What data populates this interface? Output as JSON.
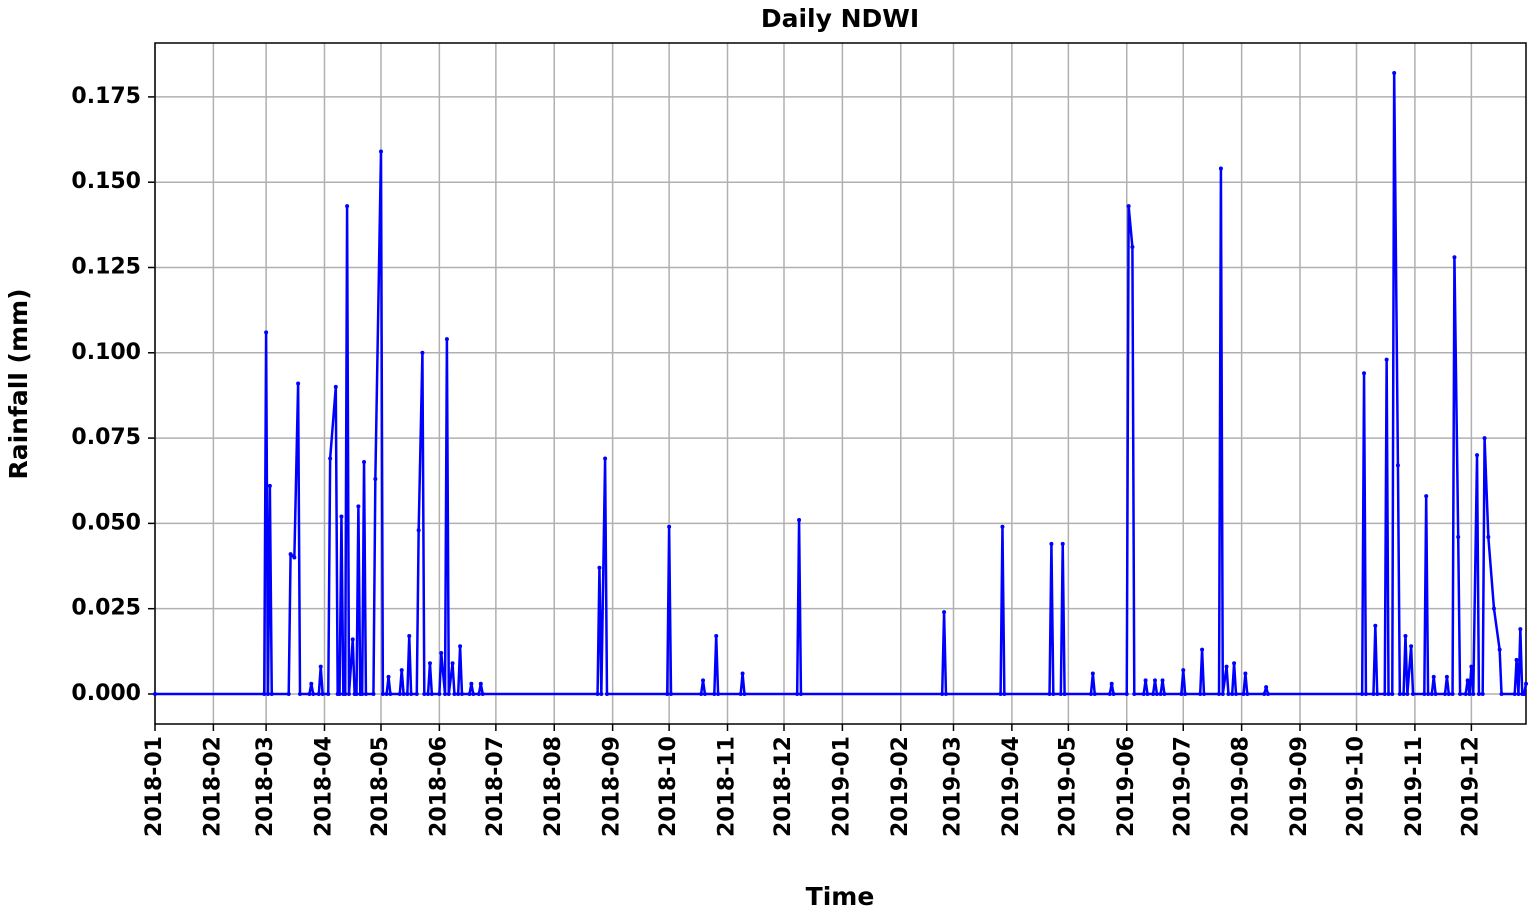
{
  "chart_data": {
    "type": "line",
    "title": "Daily NDWI",
    "xlabel": "Time",
    "ylabel": "Rainfall (mm)",
    "grid": true,
    "color": "#0000ff",
    "xlim": [
      0,
      728
    ],
    "ylim": [
      -0.0088,
      0.1908
    ],
    "xticks": [
      {
        "value": 0,
        "label": "2018-01"
      },
      {
        "value": 31,
        "label": "2018-02"
      },
      {
        "value": 59,
        "label": "2018-03"
      },
      {
        "value": 90,
        "label": "2018-04"
      },
      {
        "value": 120,
        "label": "2018-05"
      },
      {
        "value": 151,
        "label": "2018-06"
      },
      {
        "value": 181,
        "label": "2018-07"
      },
      {
        "value": 212,
        "label": "2018-08"
      },
      {
        "value": 243,
        "label": "2018-09"
      },
      {
        "value": 273,
        "label": "2018-10"
      },
      {
        "value": 304,
        "label": "2018-11"
      },
      {
        "value": 334,
        "label": "2018-12"
      },
      {
        "value": 365,
        "label": "2019-01"
      },
      {
        "value": 396,
        "label": "2019-02"
      },
      {
        "value": 424,
        "label": "2019-03"
      },
      {
        "value": 455,
        "label": "2019-04"
      },
      {
        "value": 485,
        "label": "2019-05"
      },
      {
        "value": 516,
        "label": "2019-06"
      },
      {
        "value": 546,
        "label": "2019-07"
      },
      {
        "value": 577,
        "label": "2019-08"
      },
      {
        "value": 608,
        "label": "2019-09"
      },
      {
        "value": 638,
        "label": "2019-10"
      },
      {
        "value": 669,
        "label": "2019-11"
      },
      {
        "value": 699,
        "label": "2019-12"
      }
    ],
    "yticks": [
      {
        "value": 0,
        "label": "0.000"
      },
      {
        "value": 0.025,
        "label": "0.025"
      },
      {
        "value": 0.05,
        "label": "0.050"
      },
      {
        "value": 0.075,
        "label": "0.075"
      },
      {
        "value": 0.1,
        "label": "0.100"
      },
      {
        "value": 0.125,
        "label": "0.125"
      },
      {
        "value": 0.15,
        "label": "0.150"
      },
      {
        "value": 0.175,
        "label": "0.175"
      }
    ],
    "x": [
      0,
      58,
      59,
      60,
      61,
      62,
      71,
      72,
      74,
      76,
      77,
      82,
      83,
      84,
      87,
      88,
      89,
      92,
      93,
      96,
      97,
      98,
      99,
      100,
      101,
      102,
      103,
      105,
      106,
      107,
      108,
      109,
      110,
      111,
      112,
      116,
      117,
      120,
      121,
      123,
      124,
      125,
      130,
      131,
      132,
      134,
      135,
      136,
      139,
      140,
      142,
      143,
      145,
      146,
      147,
      151,
      152,
      154,
      155,
      156,
      158,
      159,
      161,
      162,
      163,
      167,
      168,
      169,
      172,
      173,
      174,
      235,
      236,
      237,
      239,
      240,
      272,
      273,
      274,
      290,
      291,
      292,
      297,
      298,
      299,
      311,
      312,
      313,
      341,
      342,
      343,
      418,
      419,
      420,
      449,
      450,
      451,
      475,
      476,
      477,
      481,
      482,
      483,
      497,
      498,
      499,
      507,
      508,
      509,
      516,
      517,
      519,
      520,
      525,
      526,
      527,
      530,
      531,
      532,
      534,
      535,
      536,
      545,
      546,
      547,
      555,
      556,
      557,
      565,
      566,
      567,
      569,
      570,
      572,
      573,
      574,
      578,
      579,
      580,
      589,
      590,
      591,
      641,
      642,
      643,
      647,
      648,
      649,
      653,
      654,
      655,
      657,
      658,
      660,
      661,
      663,
      664,
      665,
      667,
      668,
      674,
      675,
      676,
      678,
      679,
      680,
      685,
      686,
      687,
      689,
      690,
      692,
      693,
      696,
      697,
      698,
      699,
      700,
      702,
      703,
      705,
      706,
      708,
      711,
      714,
      715,
      722,
      723,
      724,
      725,
      726,
      727,
      728
    ],
    "values": [
      0,
      0,
      0.106,
      0,
      0.061,
      0,
      0,
      0.041,
      0.04,
      0.091,
      0,
      0,
      0.003,
      0,
      0,
      0.008,
      0,
      0,
      0.069,
      0.09,
      0,
      0,
      0.052,
      0,
      0,
      0.143,
      0,
      0.016,
      0,
      0,
      0.055,
      0,
      0,
      0.068,
      0,
      0,
      0.063,
      0.159,
      0,
      0,
      0.005,
      0,
      0,
      0.007,
      0,
      0,
      0.017,
      0,
      0,
      0.048,
      0.1,
      0,
      0,
      0.009,
      0,
      0,
      0.012,
      0,
      0.104,
      0,
      0.009,
      0,
      0,
      0.014,
      0,
      0,
      0.003,
      0,
      0,
      0.003,
      0,
      0,
      0.037,
      0,
      0.069,
      0,
      0,
      0.049,
      0,
      0,
      0.004,
      0,
      0,
      0.017,
      0,
      0,
      0.006,
      0,
      0,
      0.051,
      0,
      0,
      0.024,
      0,
      0,
      0.049,
      0,
      0,
      0.044,
      0,
      0,
      0.044,
      0,
      0,
      0.006,
      0,
      0,
      0.003,
      0,
      0,
      0.143,
      0.131,
      0,
      0,
      0.004,
      0,
      0,
      0.004,
      0,
      0,
      0.004,
      0,
      0,
      0.007,
      0,
      0,
      0.013,
      0,
      0,
      0.154,
      0,
      0.008,
      0,
      0,
      0.009,
      0,
      0,
      0.006,
      0,
      0,
      0.002,
      0,
      0,
      0.094,
      0,
      0,
      0.02,
      0,
      0,
      0.098,
      0,
      0,
      0.182,
      0.067,
      0,
      0,
      0.017,
      0,
      0.014,
      0,
      0,
      0.058,
      0,
      0,
      0.005,
      0,
      0,
      0.005,
      0,
      0,
      0.128,
      0.046,
      0,
      0,
      0.004,
      0,
      0.008,
      0,
      0.07,
      0,
      0,
      0.075,
      0.046,
      0.025,
      0.013,
      0,
      0,
      0.01,
      0,
      0.019,
      0,
      0,
      0.003
    ]
  }
}
